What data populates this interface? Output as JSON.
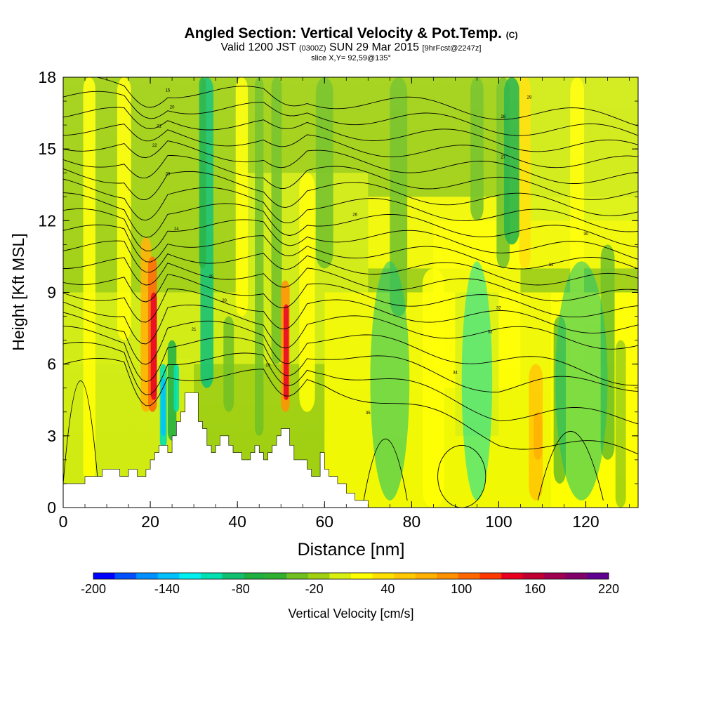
{
  "title": {
    "main": "Angled Section: Vertical Velocity & Pot.Temp.",
    "main_unit": "(C)",
    "valid_prefix": "Valid 1200 JST",
    "valid_zulu": "(0300Z)",
    "valid_date": "SUN 29 Mar 2015",
    "forecast": "[9hrFcst@2247z]",
    "slice": "slice X,Y= 92,59@135°"
  },
  "chart_data": {
    "type": "heatmap",
    "xlabel": "Distance [nm]",
    "ylabel": "Height [Kft MSL]",
    "xlim": [
      0,
      132
    ],
    "ylim": [
      0,
      18
    ],
    "x_ticks": [
      0,
      20,
      40,
      60,
      80,
      100,
      120
    ],
    "y_ticks": [
      0,
      3,
      6,
      9,
      12,
      15,
      18
    ],
    "terrain_kft": [
      [
        0,
        1.0
      ],
      [
        5,
        1.0
      ],
      [
        5,
        1.3
      ],
      [
        9,
        1.3
      ],
      [
        9,
        1.6
      ],
      [
        13,
        1.6
      ],
      [
        13,
        1.3
      ],
      [
        15,
        1.3
      ],
      [
        15,
        1.6
      ],
      [
        17,
        1.6
      ],
      [
        17,
        1.3
      ],
      [
        19,
        1.3
      ],
      [
        19,
        1.6
      ],
      [
        20,
        1.6
      ],
      [
        20,
        2.0
      ],
      [
        21,
        2.0
      ],
      [
        21,
        2.3
      ],
      [
        22,
        2.3
      ],
      [
        22,
        2.6
      ],
      [
        24,
        2.6
      ],
      [
        24,
        2.3
      ],
      [
        25,
        2.3
      ],
      [
        25,
        3.0
      ],
      [
        26,
        3.0
      ],
      [
        26,
        3.6
      ],
      [
        27,
        3.6
      ],
      [
        27,
        4.0
      ],
      [
        28,
        4.0
      ],
      [
        28,
        4.8
      ],
      [
        31,
        4.8
      ],
      [
        31,
        3.6
      ],
      [
        32,
        3.6
      ],
      [
        32,
        3.3
      ],
      [
        33,
        3.3
      ],
      [
        33,
        2.6
      ],
      [
        34,
        2.6
      ],
      [
        34,
        2.3
      ],
      [
        35,
        2.3
      ],
      [
        35,
        2.6
      ],
      [
        36,
        2.6
      ],
      [
        36,
        3.0
      ],
      [
        38,
        3.0
      ],
      [
        38,
        2.6
      ],
      [
        39,
        2.6
      ],
      [
        39,
        2.3
      ],
      [
        41,
        2.3
      ],
      [
        41,
        2.0
      ],
      [
        43,
        2.0
      ],
      [
        43,
        2.3
      ],
      [
        44,
        2.3
      ],
      [
        44,
        2.6
      ],
      [
        45,
        2.6
      ],
      [
        45,
        2.3
      ],
      [
        46,
        2.3
      ],
      [
        46,
        2.0
      ],
      [
        47,
        2.0
      ],
      [
        47,
        2.3
      ],
      [
        48,
        2.3
      ],
      [
        48,
        2.6
      ],
      [
        49,
        2.6
      ],
      [
        49,
        3.0
      ],
      [
        50,
        3.0
      ],
      [
        50,
        3.3
      ],
      [
        52,
        3.3
      ],
      [
        52,
        2.6
      ],
      [
        53,
        2.6
      ],
      [
        53,
        2.0
      ],
      [
        56,
        2.0
      ],
      [
        56,
        1.6
      ],
      [
        57,
        1.6
      ],
      [
        57,
        1.3
      ],
      [
        59,
        1.3
      ],
      [
        59,
        2.3
      ],
      [
        60,
        2.3
      ],
      [
        60,
        1.6
      ],
      [
        61,
        1.6
      ],
      [
        61,
        1.3
      ],
      [
        63,
        1.3
      ],
      [
        63,
        1.0
      ],
      [
        65,
        1.0
      ],
      [
        65,
        0.6
      ],
      [
        67,
        0.6
      ],
      [
        67,
        0.3
      ],
      [
        70,
        0.3
      ],
      [
        70,
        0.0
      ],
      [
        132,
        0.0
      ]
    ],
    "theta_contour_levels_C": [
      15,
      20,
      21,
      22,
      23,
      24,
      25,
      26,
      27,
      28,
      29,
      30,
      31,
      32,
      33,
      34,
      35
    ],
    "colorbar": {
      "label": "Vertical Velocity [cm/s]",
      "tick_labels": [
        "-200",
        "-140",
        "-80",
        "-20",
        "40",
        "100",
        "160",
        "220"
      ],
      "min": -200,
      "max": 220,
      "colors": [
        "#0000ff",
        "#0050ff",
        "#0090ff",
        "#00c0ff",
        "#00f0f0",
        "#00e0b0",
        "#10c070",
        "#20b040",
        "#30b030",
        "#70c020",
        "#a0d010",
        "#d8f010",
        "#ffff00",
        "#ffe000",
        "#ffc800",
        "#ffb000",
        "#ff9000",
        "#ff6800",
        "#ff3800",
        "#e80020",
        "#c00030",
        "#a00050",
        "#80006a",
        "#600090"
      ]
    }
  }
}
